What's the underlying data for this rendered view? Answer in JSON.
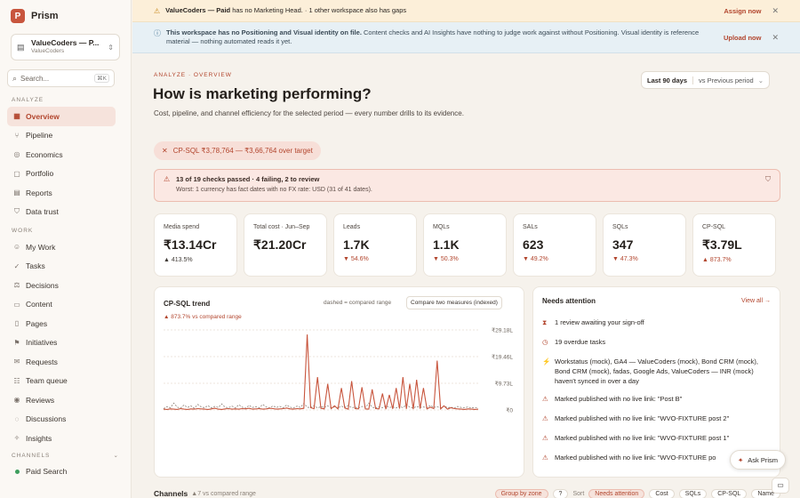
{
  "app": {
    "name": "Prism",
    "logo_letter": "P"
  },
  "workspace": {
    "name": "ValueCoders — P...",
    "sub": "ValueCoders"
  },
  "search": {
    "placeholder": "Search...",
    "shortcut": "⌘K"
  },
  "sidebar": {
    "analyze_label": "ANALYZE",
    "analyze_items": [
      {
        "label": "Overview",
        "icon": "grid-icon",
        "active": true
      },
      {
        "label": "Pipeline",
        "icon": "branch-icon"
      },
      {
        "label": "Economics",
        "icon": "coins-icon"
      },
      {
        "label": "Portfolio",
        "icon": "folder-icon"
      },
      {
        "label": "Reports",
        "icon": "document-icon"
      },
      {
        "label": "Data trust",
        "icon": "shield-icon"
      }
    ],
    "work_label": "WORK",
    "work_items": [
      {
        "label": "My Work",
        "icon": "user-icon"
      },
      {
        "label": "Tasks",
        "icon": "check-icon"
      },
      {
        "label": "Decisions",
        "icon": "scale-icon"
      },
      {
        "label": "Content",
        "icon": "content-icon"
      },
      {
        "label": "Pages",
        "icon": "page-icon"
      },
      {
        "label": "Initiatives",
        "icon": "flag-icon"
      },
      {
        "label": "Requests",
        "icon": "inbox-icon"
      },
      {
        "label": "Team queue",
        "icon": "team-icon"
      },
      {
        "label": "Reviews",
        "icon": "eye-icon"
      },
      {
        "label": "Discussions",
        "icon": "chat-icon"
      },
      {
        "label": "Insights",
        "icon": "bulb-icon"
      }
    ],
    "channels_label": "CHANNELS",
    "channel_items": [
      {
        "label": "Paid Search"
      }
    ]
  },
  "banners": {
    "top": {
      "bold": "ValueCoders — Paid",
      "text": " has no Marketing Head. · 1 other workspace also has gaps",
      "action": "Assign now"
    },
    "positioning": {
      "bold": "This workspace has no Positioning and Visual identity on file.",
      "text": " Content checks and AI Insights have nothing to judge work against without Positioning. Visual identity is reference material — nothing automated reads it yet.",
      "action": "Upload now"
    }
  },
  "header": {
    "eyebrow": "ANALYZE · OVERVIEW",
    "title": "How is marketing performing?",
    "subtitle": "Cost, pipeline, and channel efficiency for the selected period — every number drills to its evidence.",
    "period": "Last 90 days",
    "compare": "vs Previous period"
  },
  "alert_chip": "CP-SQL ₹3,78,764 — ₹3,66,764 over target",
  "checks": {
    "title": "13 of 19 checks passed · 4 failing, 2 to review",
    "sub": "Worst: 1 currency has fact dates with no FX rate: USD (31 of 41 dates)."
  },
  "kpis": [
    {
      "label": "Media spend",
      "value": "₹13.14Cr",
      "delta": "▲ 413.5%",
      "dir": "up"
    },
    {
      "label": "Total cost · Jun–Sep",
      "value": "₹21.20Cr",
      "delta": "",
      "dir": "up"
    },
    {
      "label": "Leads",
      "value": "1.7K",
      "delta": "▼ 54.6%",
      "dir": "down"
    },
    {
      "label": "MQLs",
      "value": "1.1K",
      "delta": "▼ 50.3%",
      "dir": "down"
    },
    {
      "label": "SALs",
      "value": "623",
      "delta": "▼ 49.2%",
      "dir": "down"
    },
    {
      "label": "SQLs",
      "value": "347",
      "delta": "▼ 47.3%",
      "dir": "down"
    },
    {
      "label": "CP-SQL",
      "value": "₹3.79L",
      "delta": "▲ 873.7%",
      "dir": "down"
    }
  ],
  "trend": {
    "title": "CP-SQL trend",
    "sub": "▲ 873.7% vs compared range",
    "legend": "dashed = compared range",
    "button": "Compare two measures (indexed)"
  },
  "chart_data": {
    "type": "line",
    "title": "CP-SQL trend",
    "ylim": [
      0,
      29.18
    ],
    "y_ticks": [
      "₹29.18L",
      "₹19.46L",
      "₹9.73L",
      "₹0"
    ],
    "y_tick_values": [
      29.18,
      19.46,
      9.73,
      0
    ],
    "series": [
      {
        "values": [
          0.3,
          0.2,
          0.4,
          0.3,
          0.2,
          0.5,
          0.3,
          0.2,
          0.4,
          0.3,
          0.5,
          0.4,
          0.3,
          0.2,
          0.4,
          0.6,
          0.3,
          0.2,
          0.4,
          0.5,
          0.3,
          0.4,
          0.3,
          0.5,
          0.4,
          0.6,
          0.3,
          0.4,
          0.5,
          0.3,
          0.4,
          0.6,
          0.5,
          0.3,
          0.4,
          0.5,
          0.7,
          0.4,
          0.3,
          0.5,
          0.4,
          0.6,
          27.5,
          0.8,
          0.5,
          12.0,
          0.6,
          0.4,
          9.5,
          0.5,
          1.5,
          0.4,
          8.0,
          0.7,
          0.3,
          10.5,
          0.5,
          0.4,
          8.3,
          0.4,
          0.3,
          7.5,
          0.5,
          0.4,
          6.0,
          0.3,
          5.5,
          0.4,
          8.0,
          0.5,
          12.0,
          0.4,
          9.5,
          0.3,
          11.0,
          0.5,
          8.0,
          0.4,
          1.0,
          0.5,
          18.0,
          0.4,
          1.5,
          0.3,
          0.8,
          0.5,
          0.4,
          0.3,
          0.2,
          0.4,
          0.3,
          0.2,
          0.3
        ]
      },
      {
        "values": [
          0.5,
          1.2,
          0.8,
          2.5,
          1.0,
          0.7,
          1.8,
          0.9,
          1.5,
          0.6,
          2.0,
          1.1,
          0.8,
          1.6,
          0.7,
          1.3,
          0.9,
          2.2,
          1.0,
          0.8,
          1.4,
          0.7,
          1.9,
          1.0,
          0.6,
          1.7,
          0.9,
          1.2,
          0.8,
          2.0,
          1.1,
          0.7,
          1.5,
          0.9,
          1.3,
          0.8,
          1.8,
          1.0,
          0.7,
          1.4,
          0.9,
          2.4,
          1.0,
          0.8,
          1.6,
          0.7,
          1.2,
          0.9,
          1.5,
          0.8,
          1.1,
          0.7,
          1.4,
          0.9,
          1.7,
          0.8,
          1.0,
          0.7,
          1.3,
          0.9,
          2.5,
          1.0,
          0.7,
          1.2,
          0.8,
          1.6,
          0.9,
          1.1,
          0.7,
          1.4,
          0.8,
          2.0,
          1.0,
          0.7,
          1.3,
          0.9,
          1.1,
          0.8,
          1.7,
          0.9,
          1.2,
          0.7,
          1.5,
          0.8,
          1.0,
          0.7,
          1.3,
          0.9,
          0.8,
          1.1,
          0.7,
          0.9,
          0.8
        ]
      }
    ]
  },
  "needs": {
    "title": "Needs attention",
    "view_all": "View all →",
    "items": [
      {
        "icon": "hourglass-icon",
        "text": "1 review awaiting your sign-off"
      },
      {
        "icon": "clock-icon",
        "text": "19 overdue tasks"
      },
      {
        "icon": "plug-icon",
        "text": "Workstatus (mock), GA4 — ValueCoders (mock), Bond CRM (mock), Bond CRM (mock), fadas, Google Ads, ValueCoders — INR (mock) haven't synced in over a day"
      },
      {
        "icon": "warning-icon",
        "text": "Marked published with no live link: \"Post B\""
      },
      {
        "icon": "warning-icon",
        "text": "Marked published with no live link: \"WVO-FIXTURE post 2\""
      },
      {
        "icon": "warning-icon",
        "text": "Marked published with no live link: \"WVO-FIXTURE post 1\""
      },
      {
        "icon": "warning-icon",
        "text": "Marked published with no live link: \"WVO-FIXTURE po"
      }
    ]
  },
  "ask": "Ask Prism",
  "channels_row": {
    "title": "Channels",
    "note": "▲7 vs compared range",
    "pills": [
      "Group by zone",
      "Needs attention",
      "Cost",
      "SQLs",
      "CP-SQL",
      "Name"
    ],
    "help": "?",
    "sort": "Sort"
  }
}
